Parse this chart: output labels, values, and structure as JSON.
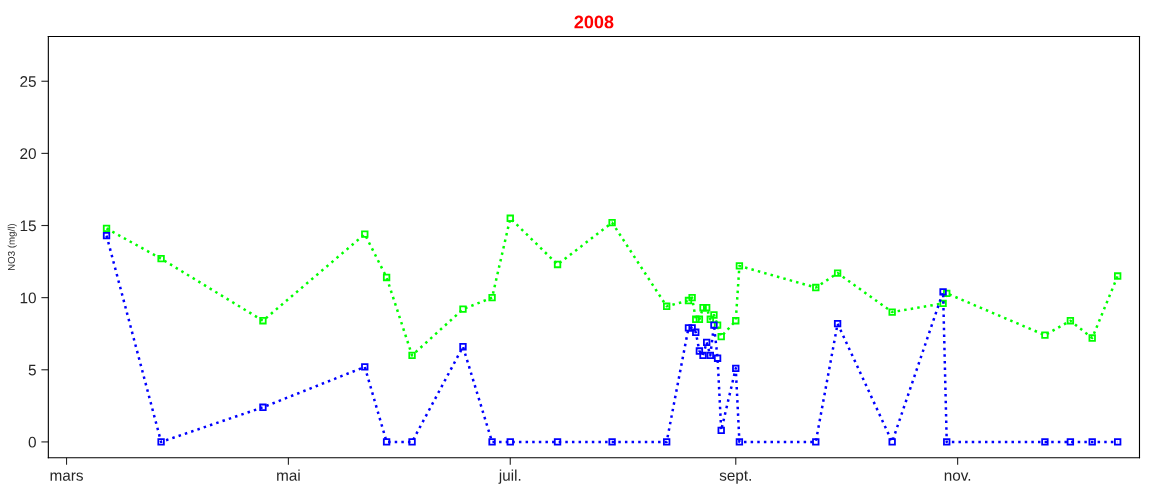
{
  "chart_data": {
    "type": "line",
    "title": "2008",
    "ylabel": "NO3 (mg/l)",
    "x": [
      "2008-03-12",
      "2008-03-27",
      "2008-04-24",
      "2008-05-22",
      "2008-05-28",
      "2008-06-04",
      "2008-06-18",
      "2008-06-26",
      "2008-07-01",
      "2008-07-14",
      "2008-07-29",
      "2008-08-13",
      "2008-08-19",
      "2008-08-20",
      "2008-08-21",
      "2008-08-22",
      "2008-08-23",
      "2008-08-24",
      "2008-08-25",
      "2008-08-26",
      "2008-08-27",
      "2008-08-28",
      "2008-09-01",
      "2008-09-02",
      "2008-09-23",
      "2008-09-29",
      "2008-10-14",
      "2008-10-28",
      "2008-10-29",
      "2008-11-25",
      "2008-12-02",
      "2008-12-08",
      "2008-12-15"
    ],
    "series": [
      {
        "color": "#00ff00",
        "values": [
          14.8,
          12.7,
          8.4,
          14.4,
          11.4,
          6.0,
          9.2,
          10.0,
          15.5,
          12.3,
          15.2,
          9.4,
          9.8,
          10.0,
          8.5,
          8.5,
          9.3,
          9.3,
          8.5,
          8.8,
          8.1,
          7.3,
          8.4,
          12.2,
          10.7,
          11.7,
          9.0,
          9.6,
          10.3,
          7.4,
          8.4,
          7.2,
          11.5
        ]
      },
      {
        "color": "#0000ff",
        "values": [
          14.3,
          0,
          2.4,
          5.2,
          0,
          0,
          6.6,
          0,
          0,
          0,
          0,
          0,
          7.9,
          7.9,
          7.6,
          6.3,
          6.0,
          6.9,
          6.0,
          8.1,
          5.8,
          0.8,
          5.1,
          0,
          0,
          8.2,
          0,
          10.4,
          0,
          0,
          0,
          0,
          0
        ]
      }
    ],
    "xlim": [
      "2008-02-25",
      "2008-12-21"
    ],
    "xticks": [
      {
        "value": "2008-03-01",
        "label": "mars"
      },
      {
        "value": "2008-05-01",
        "label": "mai"
      },
      {
        "value": "2008-07-01",
        "label": "juil."
      },
      {
        "value": "2008-09-01",
        "label": "sept."
      },
      {
        "value": "2008-11-01",
        "label": "nov."
      }
    ],
    "ylim": [
      -1.1,
      28.1
    ],
    "yticks": [
      0,
      5,
      10,
      15,
      20,
      25
    ],
    "grid": false,
    "legend": false,
    "marker": "square",
    "line_style": "dotted"
  }
}
